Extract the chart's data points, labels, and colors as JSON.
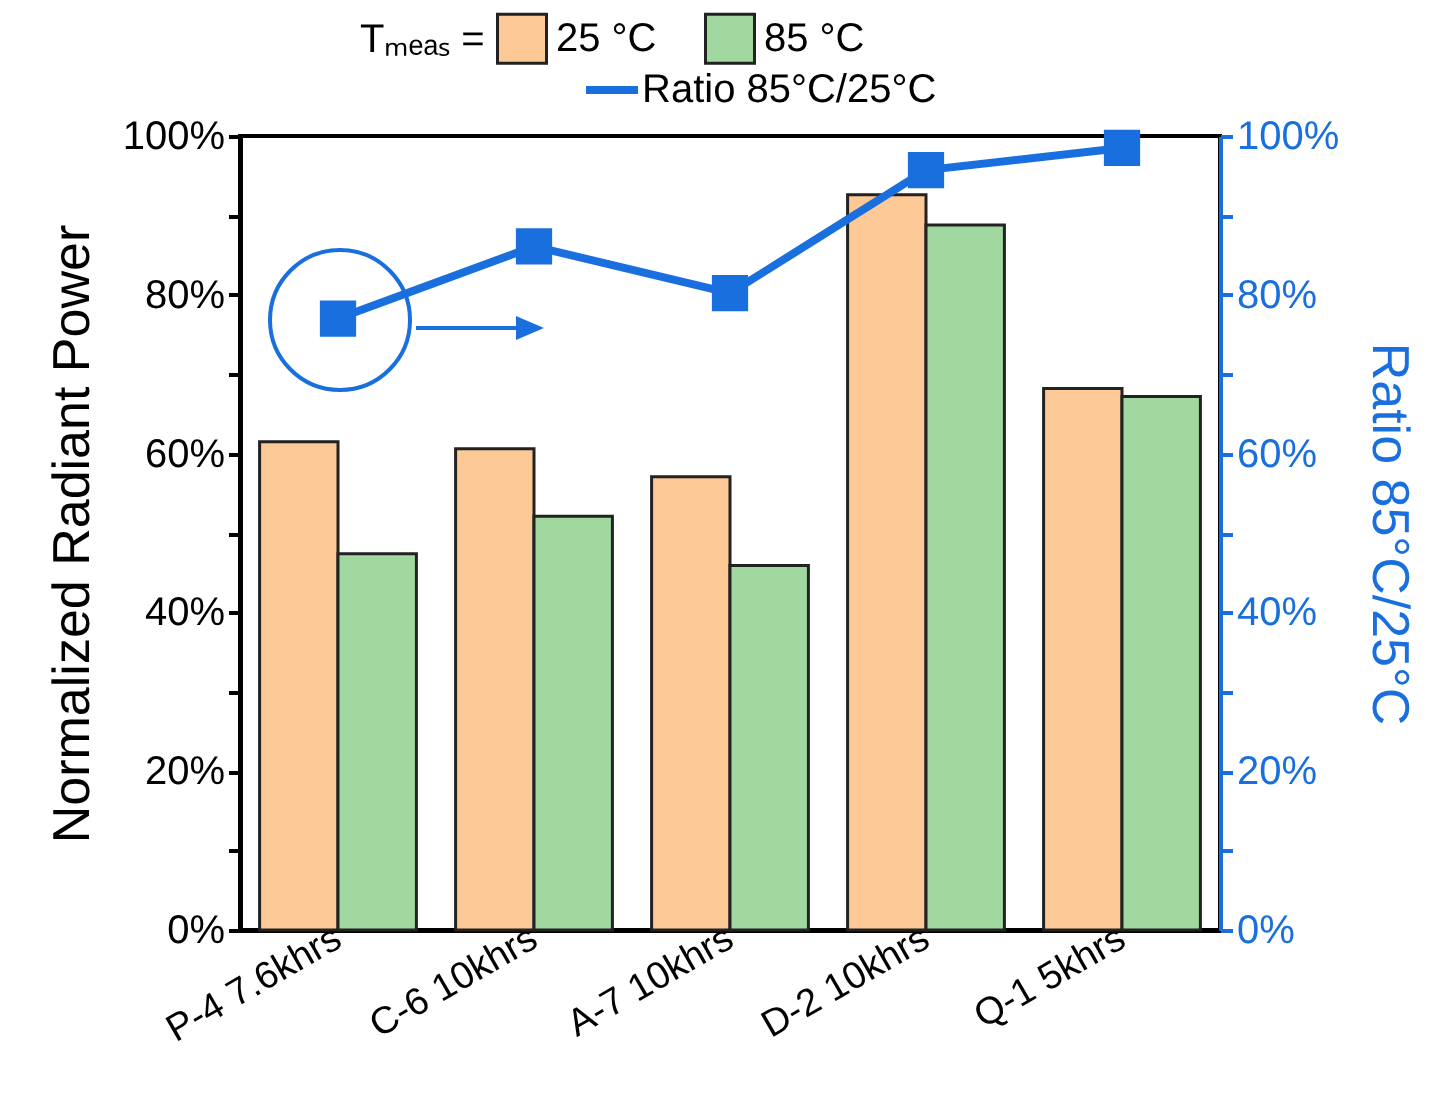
{
  "chart_data": {
    "type": "bar",
    "categories": [
      "P-4 7.6khrs",
      "C-6 10khrs",
      "A-7 10khrs",
      "D-2 10khrs",
      "Q-1 5khrs"
    ],
    "ylabel": "Normalized Radiant Power",
    "y2label": "Ratio 85°C/25°C",
    "legend_title": "Tₘₑₐₛ =",
    "series": [
      {
        "name": "25 °C",
        "color": "#fcc997",
        "values": [
          61.5,
          60.6,
          57.1,
          92.6,
          68.2
        ]
      },
      {
        "name": "85 °C",
        "color": "#a0d8a0",
        "values": [
          47.4,
          52.1,
          45.9,
          88.8,
          67.2
        ]
      },
      {
        "name": "Ratio 85°C/25°C",
        "type": "line",
        "axis": "y2",
        "color": "#1a6fdf",
        "marker": "square",
        "values": [
          77.0,
          86.1,
          80.2,
          95.7,
          98.5
        ]
      }
    ],
    "ylim": [
      0,
      100
    ],
    "yticks": [
      {
        "value": 0,
        "label": "0%"
      },
      {
        "value": 10,
        "label": null
      },
      {
        "value": 20,
        "label": "20%"
      },
      {
        "value": 30,
        "label": null
      },
      {
        "value": 40,
        "label": "40%"
      },
      {
        "value": 50,
        "label": null
      },
      {
        "value": 60,
        "label": "60%"
      },
      {
        "value": 70,
        "label": null
      },
      {
        "value": 80,
        "label": "80%"
      },
      {
        "value": 90,
        "label": null
      },
      {
        "value": 100,
        "label": "100%"
      }
    ],
    "y2lim": [
      0,
      100
    ],
    "y2ticks": [
      {
        "value": 0,
        "label": "0%"
      },
      {
        "value": 10,
        "label": null
      },
      {
        "value": 20,
        "label": "20%"
      },
      {
        "value": 30,
        "label": null
      },
      {
        "value": 40,
        "label": "40%"
      },
      {
        "value": 50,
        "label": null
      },
      {
        "value": 60,
        "label": "60%"
      },
      {
        "value": 70,
        "label": null
      },
      {
        "value": 80,
        "label": "80%"
      },
      {
        "value": 90,
        "label": null
      },
      {
        "value": 100,
        "label": "100%"
      }
    ],
    "legend": "top",
    "grid": false
  }
}
